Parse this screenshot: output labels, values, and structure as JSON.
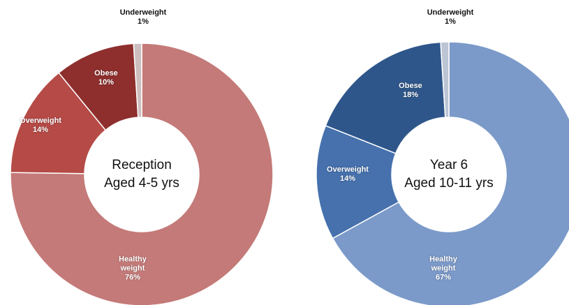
{
  "chart_data": [
    {
      "type": "donut",
      "title": "Reception",
      "subtitle": "Aged 4-5 yrs",
      "categories": [
        "Healthy weight",
        "Overweight",
        "Obese",
        "Underweight"
      ],
      "values": [
        76,
        14,
        10,
        1
      ],
      "value_labels": [
        "76%",
        "14%",
        "10%",
        "1%"
      ],
      "colors": [
        "#c47a78",
        "#b54a46",
        "#8e2f2d",
        "#cdbfbf"
      ]
    },
    {
      "type": "donut",
      "title": "Year 6",
      "subtitle": "Aged 10-11 yrs",
      "categories": [
        "Healthy weight",
        "Overweight",
        "Obese",
        "Underweight"
      ],
      "values": [
        67,
        14,
        18,
        1
      ],
      "value_labels": [
        "67%",
        "14%",
        "18%",
        "1%"
      ],
      "colors": [
        "#7b9ac9",
        "#4671ad",
        "#2e568a",
        "#bcc5d3"
      ]
    }
  ]
}
